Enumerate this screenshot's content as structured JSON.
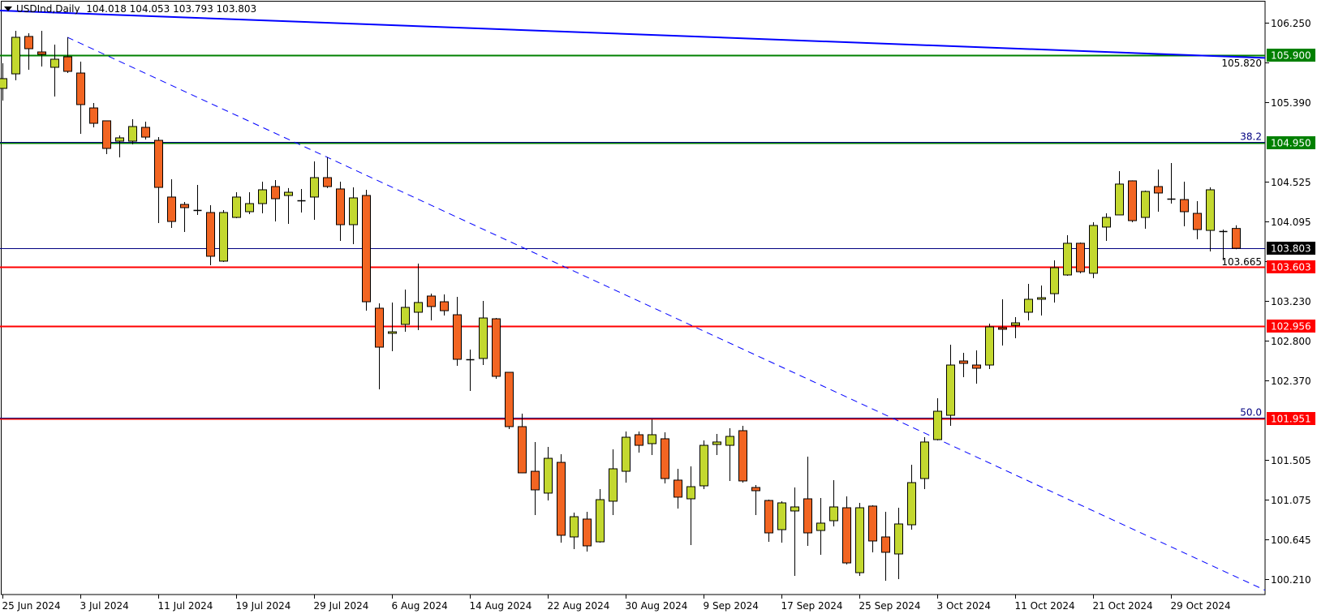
{
  "header": {
    "symbol_label": "USDInd,Daily",
    "ohlc_readout": "104.018 104.053 103.793 103.803",
    "menu_icon": "triangle-down-icon"
  },
  "colors": {
    "bull_fill": "#c3d82f",
    "bear_fill": "#f26522",
    "candle_outline": "#000000",
    "support_resistance": "#ff0000",
    "green_level": "#008000",
    "trendline": "#0000ff",
    "current_price_line": "#000080",
    "current_price_bg": "#000000"
  },
  "chart_data": {
    "type": "candlestick",
    "title": "USDInd,Daily",
    "ylim": [
      100.09,
      106.49
    ],
    "grid": false,
    "ohlc_fields": [
      "date",
      "open",
      "high",
      "low",
      "close"
    ],
    "candles": [
      [
        "2024-06-25",
        105.539,
        105.812,
        105.407,
        105.645
      ],
      [
        "2024-06-26",
        105.697,
        106.164,
        105.627,
        106.094
      ],
      [
        "2024-06-27",
        106.103,
        106.138,
        105.741,
        105.97
      ],
      [
        "2024-06-28",
        105.935,
        106.164,
        105.777,
        105.909
      ],
      [
        "2024-07-01",
        105.768,
        106.015,
        105.451,
        105.856
      ],
      [
        "2024-07-02",
        105.882,
        106.094,
        105.706,
        105.724
      ],
      [
        "2024-07-03",
        105.706,
        105.83,
        105.046,
        105.363
      ],
      [
        "2024-07-04",
        105.327,
        105.38,
        105.116,
        105.16
      ],
      [
        "2024-07-05",
        105.187,
        105.19,
        104.825,
        104.887
      ],
      [
        "2024-07-08",
        104.966,
        105.028,
        104.79,
        105.002
      ],
      [
        "2024-07-09",
        104.966,
        105.204,
        104.931,
        105.125
      ],
      [
        "2024-07-10",
        105.116,
        105.178,
        104.984,
        105.01
      ],
      [
        "2024-07-11",
        104.975,
        105.01,
        104.077,
        104.464
      ],
      [
        "2024-07-12",
        104.359,
        104.552,
        104.024,
        104.094
      ],
      [
        "2024-07-15",
        104.279,
        104.306,
        103.98,
        104.244
      ],
      [
        "2024-07-16",
        104.218,
        104.491,
        104.165,
        104.214
      ],
      [
        "2024-07-17",
        104.191,
        104.271,
        103.619,
        103.716
      ],
      [
        "2024-07-18",
        103.663,
        104.218,
        103.654,
        104.191
      ],
      [
        "2024-07-19",
        104.138,
        104.411,
        104.13,
        104.359
      ],
      [
        "2024-07-22",
        104.2,
        104.411,
        104.174,
        104.288
      ],
      [
        "2024-07-23",
        104.288,
        104.526,
        104.182,
        104.438
      ],
      [
        "2024-07-24",
        104.473,
        104.544,
        104.094,
        104.341
      ],
      [
        "2024-07-25",
        104.376,
        104.456,
        104.068,
        104.411
      ],
      [
        "2024-07-26",
        104.323,
        104.447,
        104.191,
        104.32
      ],
      [
        "2024-07-29",
        104.359,
        104.746,
        104.112,
        104.57
      ],
      [
        "2024-07-30",
        104.57,
        104.79,
        104.456,
        104.473
      ],
      [
        "2024-07-31",
        104.447,
        104.526,
        103.883,
        104.059
      ],
      [
        "2024-08-01",
        104.059,
        104.464,
        103.848,
        104.35
      ],
      [
        "2024-08-02",
        104.376,
        104.438,
        103.125,
        103.222
      ],
      [
        "2024-08-05",
        103.152,
        103.205,
        102.271,
        102.729
      ],
      [
        "2024-08-06",
        102.879,
        103.214,
        102.685,
        102.896
      ],
      [
        "2024-08-07",
        102.976,
        103.354,
        102.896,
        103.161
      ],
      [
        "2024-08-08",
        103.108,
        103.636,
        102.914,
        103.214
      ],
      [
        "2024-08-09",
        103.284,
        103.31,
        103.02,
        103.17
      ],
      [
        "2024-08-12",
        103.222,
        103.302,
        103.073,
        103.125
      ],
      [
        "2024-08-13",
        103.081,
        103.275,
        102.526,
        102.597
      ],
      [
        "2024-08-14",
        102.597,
        102.703,
        102.253,
        102.595
      ],
      [
        "2024-08-15",
        102.606,
        103.231,
        102.535,
        103.046
      ],
      [
        "2024-08-16",
        103.037,
        103.046,
        102.386,
        102.412
      ],
      [
        "2024-08-19",
        102.456,
        102.46,
        101.839,
        101.866
      ],
      [
        "2024-08-20",
        101.866,
        102.007,
        101.36,
        101.364
      ],
      [
        "2024-08-21",
        101.381,
        101.699,
        100.906,
        101.179
      ],
      [
        "2024-08-22",
        101.144,
        101.646,
        101.064,
        101.522
      ],
      [
        "2024-08-23",
        101.478,
        101.566,
        100.606,
        100.686
      ],
      [
        "2024-08-26",
        100.668,
        100.932,
        100.536,
        100.888
      ],
      [
        "2024-08-27",
        100.862,
        100.941,
        100.509,
        100.571
      ],
      [
        "2024-08-28",
        100.615,
        101.188,
        100.606,
        101.073
      ],
      [
        "2024-08-29",
        101.056,
        101.619,
        100.906,
        101.408
      ],
      [
        "2024-08-30",
        101.381,
        101.813,
        101.258,
        101.751
      ],
      [
        "2024-09-02",
        101.778,
        101.813,
        101.584,
        101.663
      ],
      [
        "2024-09-03",
        101.681,
        101.945,
        101.558,
        101.778
      ],
      [
        "2024-09-04",
        101.734,
        101.804,
        101.249,
        101.302
      ],
      [
        "2024-09-05",
        101.285,
        101.408,
        100.976,
        101.1
      ],
      [
        "2024-09-06",
        101.082,
        101.434,
        100.58,
        101.214
      ],
      [
        "2024-09-09",
        101.223,
        101.716,
        101.188,
        101.663
      ],
      [
        "2024-09-10",
        101.672,
        101.787,
        101.558,
        101.699
      ],
      [
        "2024-09-11",
        101.663,
        101.848,
        101.276,
        101.76
      ],
      [
        "2024-09-12",
        101.822,
        101.875,
        101.258,
        101.276
      ],
      [
        "2024-09-13",
        101.205,
        101.232,
        100.906,
        101.17
      ],
      [
        "2024-09-16",
        101.064,
        101.073,
        100.615,
        100.712
      ],
      [
        "2024-09-17",
        100.747,
        101.056,
        100.606,
        101.038
      ],
      [
        "2024-09-18",
        100.95,
        101.205,
        100.245,
        100.994
      ],
      [
        "2024-09-19",
        101.082,
        101.54,
        100.571,
        100.712
      ],
      [
        "2024-09-20",
        100.738,
        101.091,
        100.474,
        100.818
      ],
      [
        "2024-09-23",
        100.844,
        101.285,
        100.782,
        100.994
      ],
      [
        "2024-09-24",
        100.985,
        101.108,
        100.369,
        100.386
      ],
      [
        "2024-09-25",
        100.28,
        101.038,
        100.245,
        100.985
      ],
      [
        "2024-09-26",
        101.003,
        101.012,
        100.501,
        100.624
      ],
      [
        "2024-09-27",
        100.668,
        100.941,
        100.192,
        100.501
      ],
      [
        "2024-09-30",
        100.483,
        100.985,
        100.21,
        100.809
      ],
      [
        "2024-10-01",
        100.8,
        101.452,
        100.747,
        101.258
      ],
      [
        "2024-10-02",
        101.302,
        101.751,
        101.188,
        101.699
      ],
      [
        "2024-10-03",
        101.725,
        102.174,
        101.716,
        102.033
      ],
      [
        "2024-10-04",
        101.989,
        102.756,
        101.875,
        102.535
      ],
      [
        "2024-10-07",
        102.579,
        102.667,
        102.403,
        102.553
      ],
      [
        "2024-10-08",
        102.535,
        102.694,
        102.333,
        102.5
      ],
      [
        "2024-10-09",
        102.535,
        102.985,
        102.491,
        102.949
      ],
      [
        "2024-10-10",
        102.94,
        103.249,
        102.747,
        102.923
      ],
      [
        "2024-10-11",
        102.967,
        103.055,
        102.826,
        102.993
      ],
      [
        "2024-10-14",
        103.108,
        103.416,
        103.02,
        103.249
      ],
      [
        "2024-10-15",
        103.249,
        103.399,
        103.073,
        103.266
      ],
      [
        "2024-10-16",
        103.31,
        103.672,
        103.214,
        103.592
      ],
      [
        "2024-10-17",
        103.513,
        103.945,
        103.504,
        103.857
      ],
      [
        "2024-10-18",
        103.857,
        103.865,
        103.531,
        103.548
      ],
      [
        "2024-10-21",
        103.531,
        104.086,
        103.478,
        104.05
      ],
      [
        "2024-10-22",
        104.033,
        104.182,
        103.883,
        104.138
      ],
      [
        "2024-10-23",
        104.165,
        104.64,
        104.16,
        104.5
      ],
      [
        "2024-10-24",
        104.535,
        104.54,
        104.086,
        104.103
      ],
      [
        "2024-10-25",
        104.138,
        104.429,
        104.015,
        104.42
      ],
      [
        "2024-10-28",
        104.473,
        104.658,
        104.2,
        104.403
      ],
      [
        "2024-10-29",
        104.341,
        104.729,
        104.288,
        104.338
      ],
      [
        "2024-10-30",
        104.332,
        104.526,
        104.042,
        104.2
      ],
      [
        "2024-10-31",
        104.182,
        104.315,
        103.901,
        104.006
      ],
      [
        "2024-11-01",
        103.997,
        104.464,
        103.768,
        104.438
      ],
      [
        "2024-11-04",
        103.989,
        104.006,
        103.672,
        103.986
      ],
      [
        "2024-11-05",
        104.018,
        104.053,
        103.793,
        103.803
      ]
    ],
    "horizontal_levels": [
      {
        "price": 105.9,
        "label": "105.900",
        "color": "#008000",
        "style": "solid"
      },
      {
        "price": 104.95,
        "label": "104.950",
        "color": "#008000",
        "style": "solid",
        "fib_label": "38.2"
      },
      {
        "price": 103.803,
        "label": "103.803",
        "color": "#000080",
        "style": "solid",
        "label_bg": "#000000",
        "current_price": true
      },
      {
        "price": 103.603,
        "label": "103.603",
        "color": "#ff0000",
        "style": "solid"
      },
      {
        "price": 102.956,
        "label": "102.956",
        "color": "#ff0000",
        "style": "solid"
      },
      {
        "price": 101.951,
        "label": "101.951",
        "color": "#ff0000",
        "style": "solid",
        "fib_label": "50.0"
      }
    ],
    "trendlines": [
      {
        "from": {
          "date": "2024-06-25",
          "price": 106.384
        },
        "to": {
          "date": "2024-11-05",
          "price": 105.882
        },
        "color": "#0000ff",
        "style": "solid",
        "extend": "both"
      },
      {
        "from": {
          "date": "2024-07-02",
          "price": 106.094
        },
        "to": {
          "date": "2024-11-05",
          "price": 100.236
        },
        "color": "#0000ff",
        "style": "dashed",
        "extend": "right"
      }
    ],
    "y_ticks": [
      "106.250",
      "105.820",
      "105.390",
      "104.525",
      "104.095",
      "103.665",
      "103.230",
      "102.800",
      "102.370",
      "101.505",
      "101.075",
      "100.645",
      "100.210"
    ],
    "x_ticks": [
      {
        "date": "2024-06-25",
        "label": "25 Jun 2024"
      },
      {
        "date": "2024-07-03",
        "label": "3 Jul 2024"
      },
      {
        "date": "2024-07-11",
        "label": "11 Jul 2024"
      },
      {
        "date": "2024-07-19",
        "label": "19 Jul 2024"
      },
      {
        "date": "2024-07-29",
        "label": "29 Jul 2024"
      },
      {
        "date": "2024-08-06",
        "label": "6 Aug 2024"
      },
      {
        "date": "2024-08-14",
        "label": "14 Aug 2024"
      },
      {
        "date": "2024-08-22",
        "label": "22 Aug 2024"
      },
      {
        "date": "2024-08-30",
        "label": "30 Aug 2024"
      },
      {
        "date": "2024-09-09",
        "label": "9 Sep 2024"
      },
      {
        "date": "2024-09-17",
        "label": "17 Sep 2024"
      },
      {
        "date": "2024-09-25",
        "label": "25 Sep 2024"
      },
      {
        "date": "2024-10-03",
        "label": "3 Oct 2024"
      },
      {
        "date": "2024-10-11",
        "label": "11 Oct 2024"
      },
      {
        "date": "2024-10-21",
        "label": "21 Oct 2024"
      },
      {
        "date": "2024-10-29",
        "label": "29 Oct 2024"
      }
    ]
  }
}
